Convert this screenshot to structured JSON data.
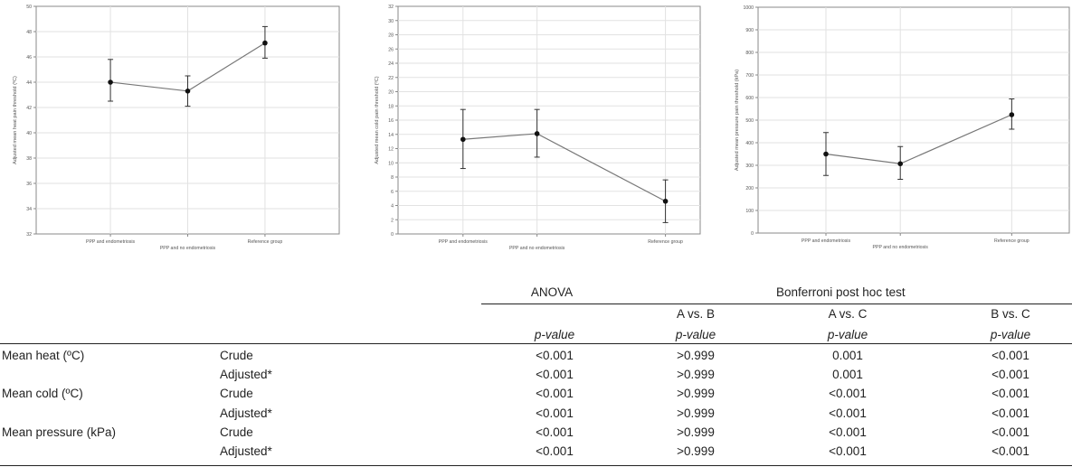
{
  "chart_data": [
    {
      "type": "line",
      "ylabel": "Adjusted mean heat pain threshold (ºC)",
      "categories": [
        "PPP and endometriosis",
        "PPP and no endometriosis",
        "Reference group"
      ],
      "values": [
        44.0,
        43.3,
        47.1
      ],
      "lower": [
        42.5,
        42.1,
        45.9
      ],
      "upper": [
        45.8,
        44.5,
        48.4
      ],
      "ylim": [
        32,
        50
      ],
      "yticks": [
        32,
        34,
        36,
        38,
        40,
        42,
        44,
        46,
        48,
        50
      ],
      "grid": true
    },
    {
      "type": "line",
      "ylabel": "Adjusted mean cold pain threshold (ºC)",
      "categories": [
        "PPP and endometriosis",
        "PPP and no endometriosis",
        "Reference group"
      ],
      "values": [
        13.3,
        14.1,
        4.6
      ],
      "lower": [
        9.2,
        10.8,
        1.6
      ],
      "upper": [
        17.5,
        17.5,
        7.6
      ],
      "ylim": [
        0,
        32
      ],
      "yticks": [
        0,
        2,
        4,
        6,
        8,
        10,
        12,
        14,
        16,
        18,
        20,
        22,
        24,
        26,
        28,
        30,
        32
      ],
      "grid": true
    },
    {
      "type": "line",
      "ylabel": "Adjusted mean pressure pain threshold (kPa)",
      "categories": [
        "PPP and endometriosis",
        "PPP and no endometriosis",
        "Reference group"
      ],
      "values": [
        350,
        307,
        524
      ],
      "lower": [
        255,
        238,
        460
      ],
      "upper": [
        445,
        383,
        594
      ],
      "ylim": [
        0,
        1000
      ],
      "yticks": [
        0,
        100,
        200,
        300,
        400,
        500,
        600,
        700,
        800,
        900,
        1000
      ],
      "grid": true
    }
  ],
  "table": {
    "anova_header": "ANOVA",
    "posthoc_header": "Bonferroni post hoc test",
    "comparisons": [
      "A vs. B",
      "A vs. C",
      "B vs. C"
    ],
    "pvalue_label": "p-value",
    "rows": [
      {
        "measure": "Mean heat (ºC)",
        "type": "Crude",
        "anova": "<0.001",
        "ab": ">0.999",
        "ac": "0.001",
        "bc": "<0.001"
      },
      {
        "measure": "",
        "type": "Adjusted*",
        "anova": "<0.001",
        "ab": ">0.999",
        "ac": "0.001",
        "bc": "<0.001"
      },
      {
        "measure": "Mean cold (ºC)",
        "type": "Crude",
        "anova": "<0.001",
        "ab": ">0.999",
        "ac": "<0.001",
        "bc": "<0.001"
      },
      {
        "measure": "",
        "type": "Adjusted*",
        "anova": "<0.001",
        "ab": ">0.999",
        "ac": "<0.001",
        "bc": "<0.001"
      },
      {
        "measure": "Mean pressure (kPa)",
        "type": "Crude",
        "anova": "<0.001",
        "ab": ">0.999",
        "ac": "<0.001",
        "bc": "<0.001"
      },
      {
        "measure": "",
        "type": "Adjusted*",
        "anova": "<0.001",
        "ab": ">0.999",
        "ac": "<0.001",
        "bc": "<0.001"
      }
    ]
  }
}
